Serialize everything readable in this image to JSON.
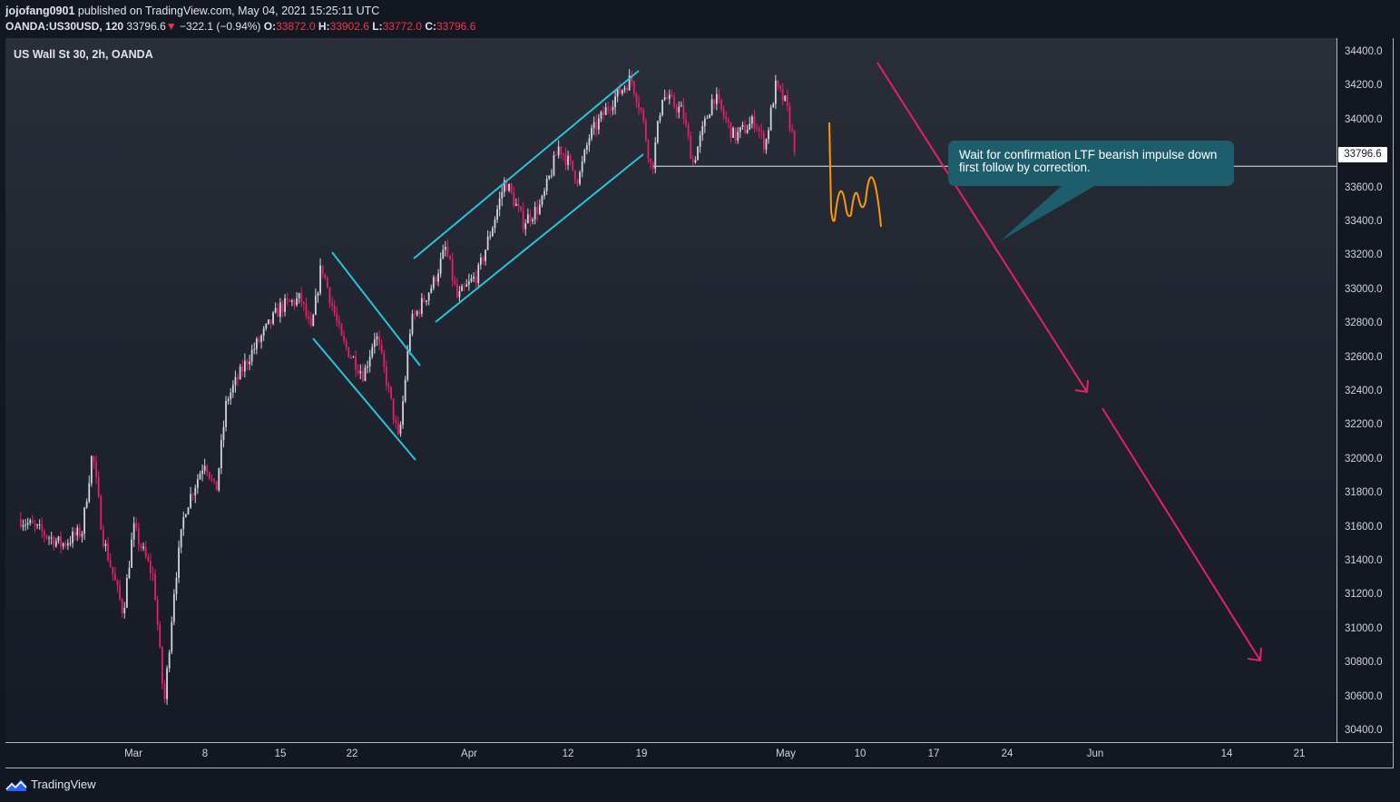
{
  "header": {
    "author": "jojofang0901",
    "published_text": "published on TradingView.com, May 04, 2021 15:25:11 UTC",
    "symbol": "OANDA:US30USD, 120",
    "last": "33796.6",
    "change": "−322.1 (−0.94%)",
    "o_label": "O:",
    "open": "33872.0",
    "h_label": "H:",
    "high": "33902.6",
    "l_label": "L:",
    "low": "33772.0",
    "c_label": "C:",
    "close": "33796.6"
  },
  "chart_title": "US Wall St 30, 2h, OANDA",
  "price_label": "33796.6",
  "callout_text": "Wait for confirmation LTF bearish impulse down first follow by correction.",
  "footer": {
    "brand": "TradingView"
  },
  "colors": {
    "up": "#d1d4dc",
    "down": "#e91e63",
    "channel": "#26c6da",
    "projection": "#ff9800",
    "arrow": "#e91e63",
    "callout": "#1e5d6b"
  },
  "chart_data": {
    "type": "candlestick",
    "title": "US Wall St 30, 2h, OANDA",
    "ylim": [
      30300,
      34500
    ],
    "y_ticks": [
      "34400.0",
      "34200.0",
      "34000.0",
      "33800.0",
      "33600.0",
      "33400.0",
      "33200.0",
      "33000.0",
      "32800.0",
      "32600.0",
      "32400.0",
      "32200.0",
      "32000.0",
      "31800.0",
      "31600.0",
      "31400.0",
      "31200.0",
      "31000.0",
      "30800.0",
      "30600.0",
      "30400.0"
    ],
    "x_ticks": [
      "Mar",
      "8",
      "15",
      "22",
      "Apr",
      "12",
      "19",
      "May",
      "10",
      "17",
      "24",
      "Jun",
      "14",
      "21"
    ],
    "x_tick_dates": [
      "2021-03-01",
      "2021-03-08",
      "2021-03-15",
      "2021-03-22",
      "2021-04-01",
      "2021-04-12",
      "2021-04-19",
      "2021-05-03",
      "2021-05-10",
      "2021-05-17",
      "2021-05-24",
      "2021-06-01",
      "2021-06-14",
      "2021-06-21"
    ],
    "price_path": [
      [
        "2021-02-18",
        31650
      ],
      [
        "2021-02-22",
        31500
      ],
      [
        "2021-02-24",
        31580
      ],
      [
        "2021-02-25",
        32050
      ],
      [
        "2021-02-26",
        31550
      ],
      [
        "2021-02-28",
        31100
      ],
      [
        "2021-03-01",
        31600
      ],
      [
        "2021-03-03",
        31300
      ],
      [
        "2021-03-04",
        30550
      ],
      [
        "2021-03-05",
        31250
      ],
      [
        "2021-03-06",
        31700
      ],
      [
        "2021-03-08",
        32000
      ],
      [
        "2021-03-09",
        31800
      ],
      [
        "2021-03-10",
        32350
      ],
      [
        "2021-03-12",
        32600
      ],
      [
        "2021-03-15",
        32900
      ],
      [
        "2021-03-17",
        32950
      ],
      [
        "2021-03-18",
        32750
      ],
      [
        "2021-03-19",
        33150
      ],
      [
        "2021-03-21",
        32700
      ],
      [
        "2021-03-23",
        32500
      ],
      [
        "2021-03-24",
        32750
      ],
      [
        "2021-03-25",
        32450
      ],
      [
        "2021-03-26",
        32100
      ],
      [
        "2021-03-27",
        32800
      ],
      [
        "2021-03-29",
        33050
      ],
      [
        "2021-03-30",
        33250
      ],
      [
        "2021-03-31",
        32950
      ],
      [
        "2021-04-02",
        33100
      ],
      [
        "2021-04-04",
        33450
      ],
      [
        "2021-04-05",
        33650
      ],
      [
        "2021-04-07",
        33400
      ],
      [
        "2021-04-09",
        33500
      ],
      [
        "2021-04-11",
        33850
      ],
      [
        "2021-04-13",
        33650
      ],
      [
        "2021-04-14",
        33900
      ],
      [
        "2021-04-16",
        34100
      ],
      [
        "2021-04-18",
        34250
      ],
      [
        "2021-04-19",
        34050
      ],
      [
        "2021-04-20",
        33700
      ],
      [
        "2021-04-21",
        34150
      ],
      [
        "2021-04-23",
        34050
      ],
      [
        "2021-04-24",
        33750
      ],
      [
        "2021-04-26",
        34150
      ],
      [
        "2021-04-28",
        33900
      ],
      [
        "2021-04-30",
        34000
      ],
      [
        "2021-05-01",
        33850
      ],
      [
        "2021-05-02",
        34200
      ],
      [
        "2021-05-03",
        34100
      ],
      [
        "2021-05-04",
        33796.6
      ]
    ],
    "horizontal_level": 33730,
    "last_price": 33796.6
  }
}
